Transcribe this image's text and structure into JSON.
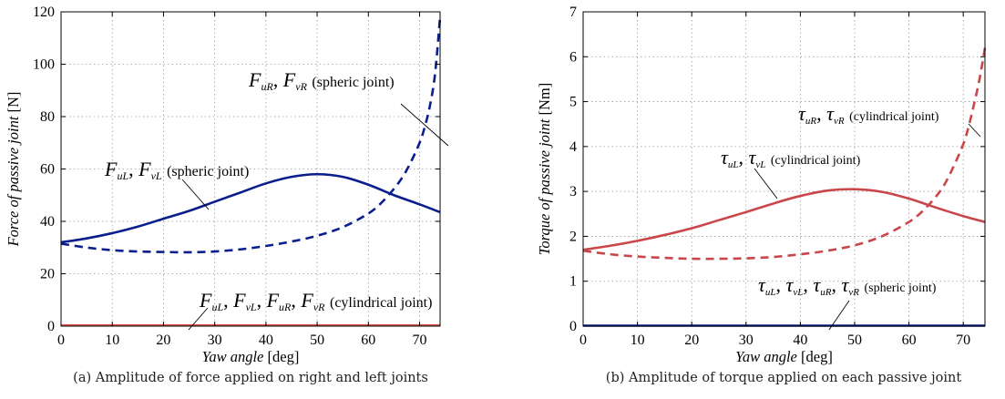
{
  "chart_data": [
    {
      "type": "line",
      "xlabel": {
        "italic": "Yaw angle",
        "unit": "[deg]"
      },
      "ylabel": {
        "italic": "Force of passive joint",
        "unit": "[N]"
      },
      "xlim": [
        0,
        74
      ],
      "ylim": [
        0,
        120
      ],
      "xticks": [
        0,
        10,
        20,
        30,
        40,
        50,
        60,
        70
      ],
      "yticks": [
        0,
        20,
        40,
        60,
        80,
        100,
        120
      ],
      "grid": true,
      "caption": "(a) Amplitude of force applied on right and left joints",
      "series": [
        {
          "color": "#0a1e8c",
          "dash": false,
          "x": [
            0,
            5,
            10,
            15,
            20,
            25,
            30,
            35,
            40,
            45,
            50,
            55,
            60,
            65,
            70,
            74
          ],
          "y": [
            32,
            33.5,
            35.5,
            38,
            41,
            44,
            47.5,
            51,
            54.5,
            57,
            58,
            57,
            54,
            50,
            46.5,
            43.5
          ]
        },
        {
          "color": "#0a1e8c",
          "dash": true,
          "x": [
            0,
            5,
            10,
            15,
            20,
            25,
            30,
            35,
            40,
            45,
            50,
            55,
            60,
            63,
            66,
            68,
            70,
            71,
            72,
            73,
            74
          ],
          "y": [
            31.5,
            30,
            29,
            28.5,
            28.3,
            28.2,
            28.5,
            29.3,
            30.6,
            32.3,
            34.5,
            37.8,
            43,
            48,
            55,
            61.5,
            70,
            76,
            84,
            96,
            118
          ]
        },
        {
          "color": "#d9534f",
          "dash": false,
          "x": [
            0,
            74
          ],
          "y": [
            0.3,
            0.3
          ]
        }
      ],
      "annotations": [
        {
          "id": "a1",
          "main": "F",
          "sub": "uR",
          "main2": "F",
          "sub2": "vR",
          "sep": ",",
          "note": "(spheric joint)"
        },
        {
          "id": "a2",
          "main": "F",
          "sub": "uL",
          "main2": "F",
          "sub2": "vL",
          "sep": ",",
          "note": "(spheric joint)"
        },
        {
          "id": "a3",
          "parts": [
            [
              "F",
              "uL"
            ],
            [
              "F",
              "vL"
            ],
            [
              "F",
              "uR"
            ],
            [
              "F",
              "vR"
            ]
          ],
          "note": "(cylindrical joint)"
        }
      ]
    },
    {
      "type": "line",
      "xlabel": {
        "italic": "Yaw angle",
        "unit": "[deg]"
      },
      "ylabel": {
        "italic": "Torque of passive joint",
        "unit": "[Nm]"
      },
      "xlim": [
        0,
        74
      ],
      "ylim": [
        0,
        7
      ],
      "xticks": [
        0,
        10,
        20,
        30,
        40,
        50,
        60,
        70
      ],
      "yticks": [
        0,
        1,
        2,
        3,
        4,
        5,
        6,
        7
      ],
      "grid": true,
      "caption": "(b) Amplitude of torque applied on each passive joint",
      "series": [
        {
          "color": "#c9474a",
          "dash": false,
          "x": [
            0,
            5,
            10,
            15,
            20,
            25,
            30,
            35,
            40,
            45,
            50,
            55,
            60,
            65,
            70,
            74
          ],
          "y": [
            1.7,
            1.79,
            1.9,
            2.03,
            2.18,
            2.36,
            2.54,
            2.73,
            2.9,
            3.02,
            3.05,
            2.99,
            2.84,
            2.64,
            2.45,
            2.32
          ]
        },
        {
          "color": "#c9474a",
          "dash": true,
          "x": [
            0,
            5,
            10,
            15,
            20,
            25,
            30,
            35,
            40,
            45,
            50,
            55,
            60,
            63,
            66,
            68,
            70,
            71,
            72,
            73,
            74
          ],
          "y": [
            1.68,
            1.6,
            1.55,
            1.52,
            1.5,
            1.5,
            1.51,
            1.54,
            1.6,
            1.68,
            1.8,
            2.0,
            2.32,
            2.62,
            3.05,
            3.5,
            4.05,
            4.45,
            4.95,
            5.5,
            6.2
          ]
        },
        {
          "color": "#0a1e8c",
          "dash": false,
          "x": [
            0,
            74
          ],
          "y": [
            0.01,
            0.01
          ]
        }
      ],
      "annotations": [
        {
          "id": "b1",
          "parts": [
            [
              "τ",
              "uR"
            ],
            [
              "τ",
              "vR"
            ]
          ],
          "note": "(cylindrical joint)"
        },
        {
          "id": "b2",
          "parts": [
            [
              "τ",
              "uL"
            ],
            [
              "τ",
              "vL"
            ]
          ],
          "note": "(cylindrical joint)"
        },
        {
          "id": "b3",
          "parts": [
            [
              "τ",
              "uL"
            ],
            [
              "τ",
              "vL"
            ],
            [
              "τ",
              "uR"
            ],
            [
              "τ",
              "vR"
            ]
          ],
          "note": "(spheric joint)"
        }
      ]
    }
  ]
}
